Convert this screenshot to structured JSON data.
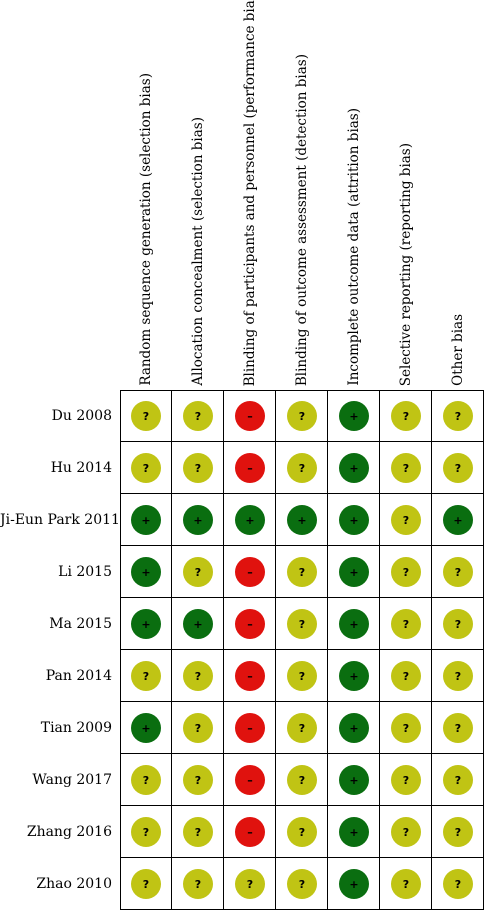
{
  "colors": {
    "low": "#0a6e10",
    "unclear": "#c0c414",
    "high": "#e0120e"
  },
  "symbols": {
    "low": "+",
    "unclear": "?",
    "high": "–"
  },
  "columns": [
    "Random sequence generation (selection bias)",
    "Allocation concealment (selection bias)",
    "Blinding of participants and personnel (performance bias)",
    "Blinding of outcome assessment (detection bias)",
    "Incomplete outcome data (attrition bias)",
    "Selective reporting (reporting bias)",
    "Other bias"
  ],
  "studies": [
    {
      "name": "Du 2008",
      "ratings": [
        "unclear",
        "unclear",
        "high",
        "unclear",
        "low",
        "unclear",
        "unclear"
      ]
    },
    {
      "name": "Hu 2014",
      "ratings": [
        "unclear",
        "unclear",
        "high",
        "unclear",
        "low",
        "unclear",
        "unclear"
      ]
    },
    {
      "name": "Ji-Eun Park 2011",
      "ratings": [
        "low",
        "low",
        "low",
        "low",
        "low",
        "unclear",
        "low"
      ]
    },
    {
      "name": "Li 2015",
      "ratings": [
        "low",
        "unclear",
        "high",
        "unclear",
        "low",
        "unclear",
        "unclear"
      ]
    },
    {
      "name": "Ma 2015",
      "ratings": [
        "low",
        "low",
        "high",
        "unclear",
        "low",
        "unclear",
        "unclear"
      ]
    },
    {
      "name": "Pan 2014",
      "ratings": [
        "unclear",
        "unclear",
        "high",
        "unclear",
        "low",
        "unclear",
        "unclear"
      ]
    },
    {
      "name": "Tian 2009",
      "ratings": [
        "low",
        "unclear",
        "high",
        "unclear",
        "low",
        "unclear",
        "unclear"
      ]
    },
    {
      "name": "Wang 2017",
      "ratings": [
        "unclear",
        "unclear",
        "high",
        "unclear",
        "low",
        "unclear",
        "unclear"
      ]
    },
    {
      "name": "Zhang 2016",
      "ratings": [
        "unclear",
        "unclear",
        "high",
        "unclear",
        "low",
        "unclear",
        "unclear"
      ]
    },
    {
      "name": "Zhao 2010",
      "ratings": [
        "unclear",
        "unclear",
        "unclear",
        "unclear",
        "low",
        "unclear",
        "unclear"
      ]
    }
  ]
}
